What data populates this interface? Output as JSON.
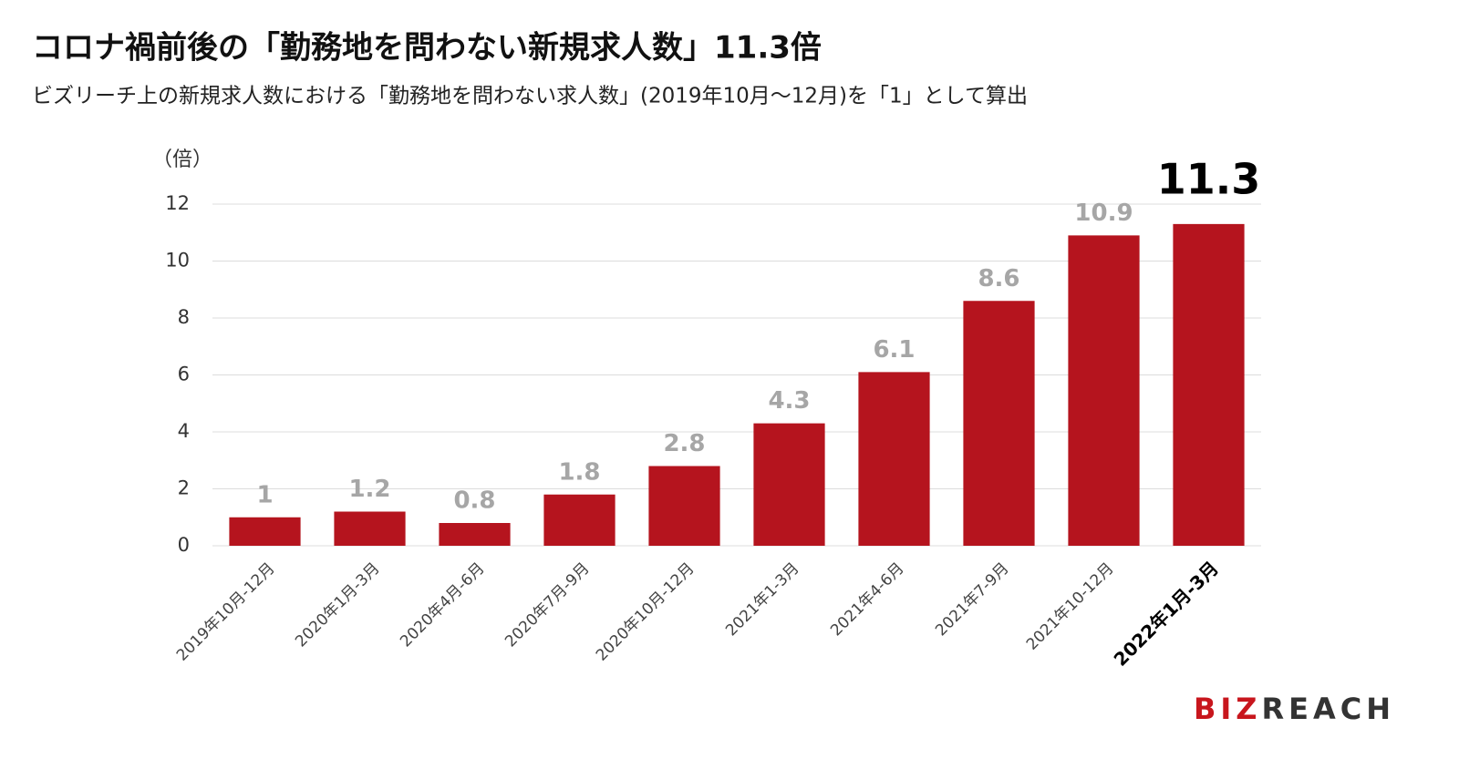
{
  "chart_data": {
    "type": "bar",
    "title": "コロナ禍前後の「勤務地を問わない新規求人数」11.3倍",
    "subtitle": "ビズリーチ上の新規求人数における「勤務地を問わない求人数」(2019年10月〜12月)を「1」として算出",
    "y_label": "（倍）",
    "categories": [
      "2019年10月-12月",
      "2020年1月-3月",
      "2020年4月-6月",
      "2020年7月-9月",
      "2020年10月-12月",
      "2021年1-3月",
      "2021年4-6月",
      "2021年7-9月",
      "2021年10-12月",
      "2022年1月-3月"
    ],
    "values": [
      1,
      1.2,
      0.8,
      1.8,
      2.8,
      4.3,
      6.1,
      8.6,
      10.9,
      11.3
    ],
    "color": "#b5141e",
    "highlight_index": 9,
    "ylim": [
      0,
      12
    ],
    "yticks": [
      0,
      2,
      4,
      6,
      8,
      10,
      12
    ],
    "grid": true
  },
  "logo": {
    "accent": "BIZ",
    "rest": "REACH"
  }
}
